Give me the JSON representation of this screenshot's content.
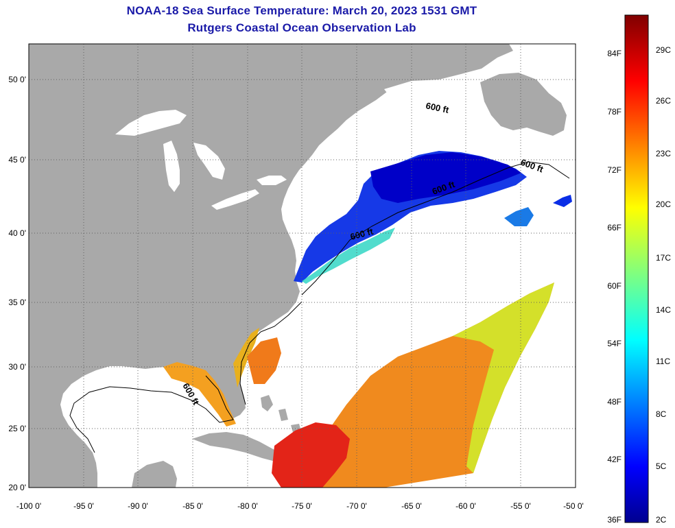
{
  "title": {
    "line1": "NOAA-18 Sea Surface Temperature:  March 20, 2023 1531 GMT",
    "line2": "Rutgers Coastal Ocean Observation Lab"
  },
  "map": {
    "lon_ticks": [
      "-100 0'",
      "-95 0'",
      "-90 0'",
      "-85 0'",
      "-80 0'",
      "-75 0'",
      "-70 0'",
      "-65 0'",
      "-60 0'",
      "-55 0'",
      "-50 0'"
    ],
    "lat_ticks": [
      "50 0'",
      "45 0'",
      "40 0'",
      "35 0'",
      "30 0'",
      "25 0'",
      "20 0'"
    ],
    "contour_label": "600 ft",
    "colors": {
      "land": "#a9a9a9",
      "no_data": "#ffffff",
      "grid": "#606060"
    }
  },
  "colorbar": {
    "fahrenheit": [
      "84F",
      "78F",
      "72F",
      "66F",
      "60F",
      "54F",
      "48F",
      "42F",
      "36F"
    ],
    "celsius": [
      "29C",
      "26C",
      "23C",
      "20C",
      "17C",
      "14C",
      "11C",
      "8C",
      "5C",
      "2C"
    ]
  }
}
